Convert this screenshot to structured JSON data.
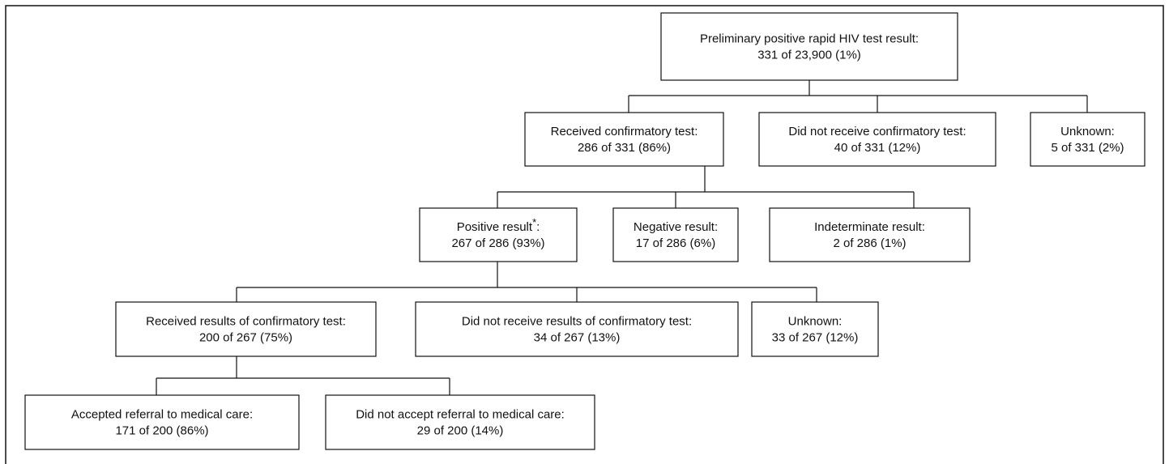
{
  "nodes": [
    {
      "title": "Preliminary positive rapid HIV test result:",
      "detail": "331 of 23,900 (1%)"
    },
    {
      "title": "Received confirmatory test:",
      "detail": "286 of 331 (86%)"
    },
    {
      "title": "Did not receive confirmatory test:",
      "detail": "40 of 331 (12%)"
    },
    {
      "title": "Unknown:",
      "detail": "5 of 331 (2%)"
    },
    {
      "title": "Positive result",
      "marker": "*",
      "title_end": ":",
      "detail": "267 of 286 (93%)"
    },
    {
      "title": "Negative result:",
      "detail": "17 of 286 (6%)"
    },
    {
      "title": "Indeterminate result:",
      "detail": "2 of 286 (1%)"
    },
    {
      "title": "Received results of confirmatory test:",
      "detail": "200 of 267 (75%)"
    },
    {
      "title": "Did not receive results of confirmatory test:",
      "detail": "34 of 267 (13%)"
    },
    {
      "title": "Unknown:",
      "detail": "33 of 267 (12%)"
    },
    {
      "title": "Accepted referral to medical care:",
      "detail": "171 of 200 (86%)"
    },
    {
      "title": "Did not accept referral to medical care:",
      "detail": "29 of 200 (14%)"
    }
  ]
}
